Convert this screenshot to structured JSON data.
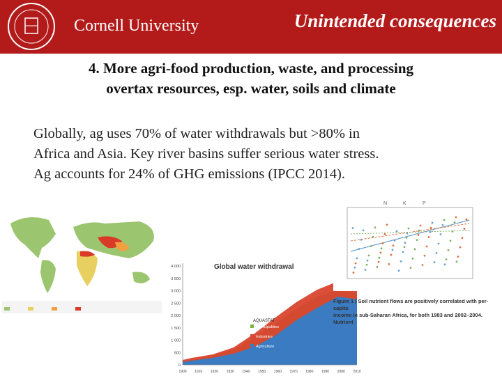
{
  "header": {
    "logo_text": "Cornell University",
    "title": "Unintended consequences"
  },
  "subtitle": {
    "lines": [
      "4. More agri-food production, waste, and processing",
      "overtax resources, esp. water, soils and climate"
    ]
  },
  "body": {
    "lines": [
      "Globally, ag uses 70% of water withdrawals but >80% in",
      "Africa and Asia. Key river basins suffer serious water stress.",
      "Ag accounts for 24% of GHG emissions (IPCC 2014)."
    ]
  },
  "figures": {
    "area_chart": {
      "title": "Global water withdrawal",
      "source": "AQUASTAT",
      "ylabels": [
        "4 000",
        "3 500",
        "3 000",
        "2 500",
        "2 000",
        "1 500",
        "1 000",
        "500",
        "0"
      ],
      "xlabels": [
        "1900",
        "1910",
        "1920",
        "1930",
        "1940",
        "1950",
        "1960",
        "1970",
        "1980",
        "1990",
        "2000",
        "2010"
      ],
      "legend": [
        "Municipalities",
        "Industries",
        "Agriculture"
      ]
    },
    "scatter": {
      "legend": [
        "N",
        "K",
        "P"
      ]
    },
    "caption": {
      "lines": [
        "Figure 1 | Soil nutrient flows are positively correlated with per-capita",
        "income in sub-Saharan Africa, for both 1983 and 2002–2004. Nutrient"
      ]
    }
  }
}
